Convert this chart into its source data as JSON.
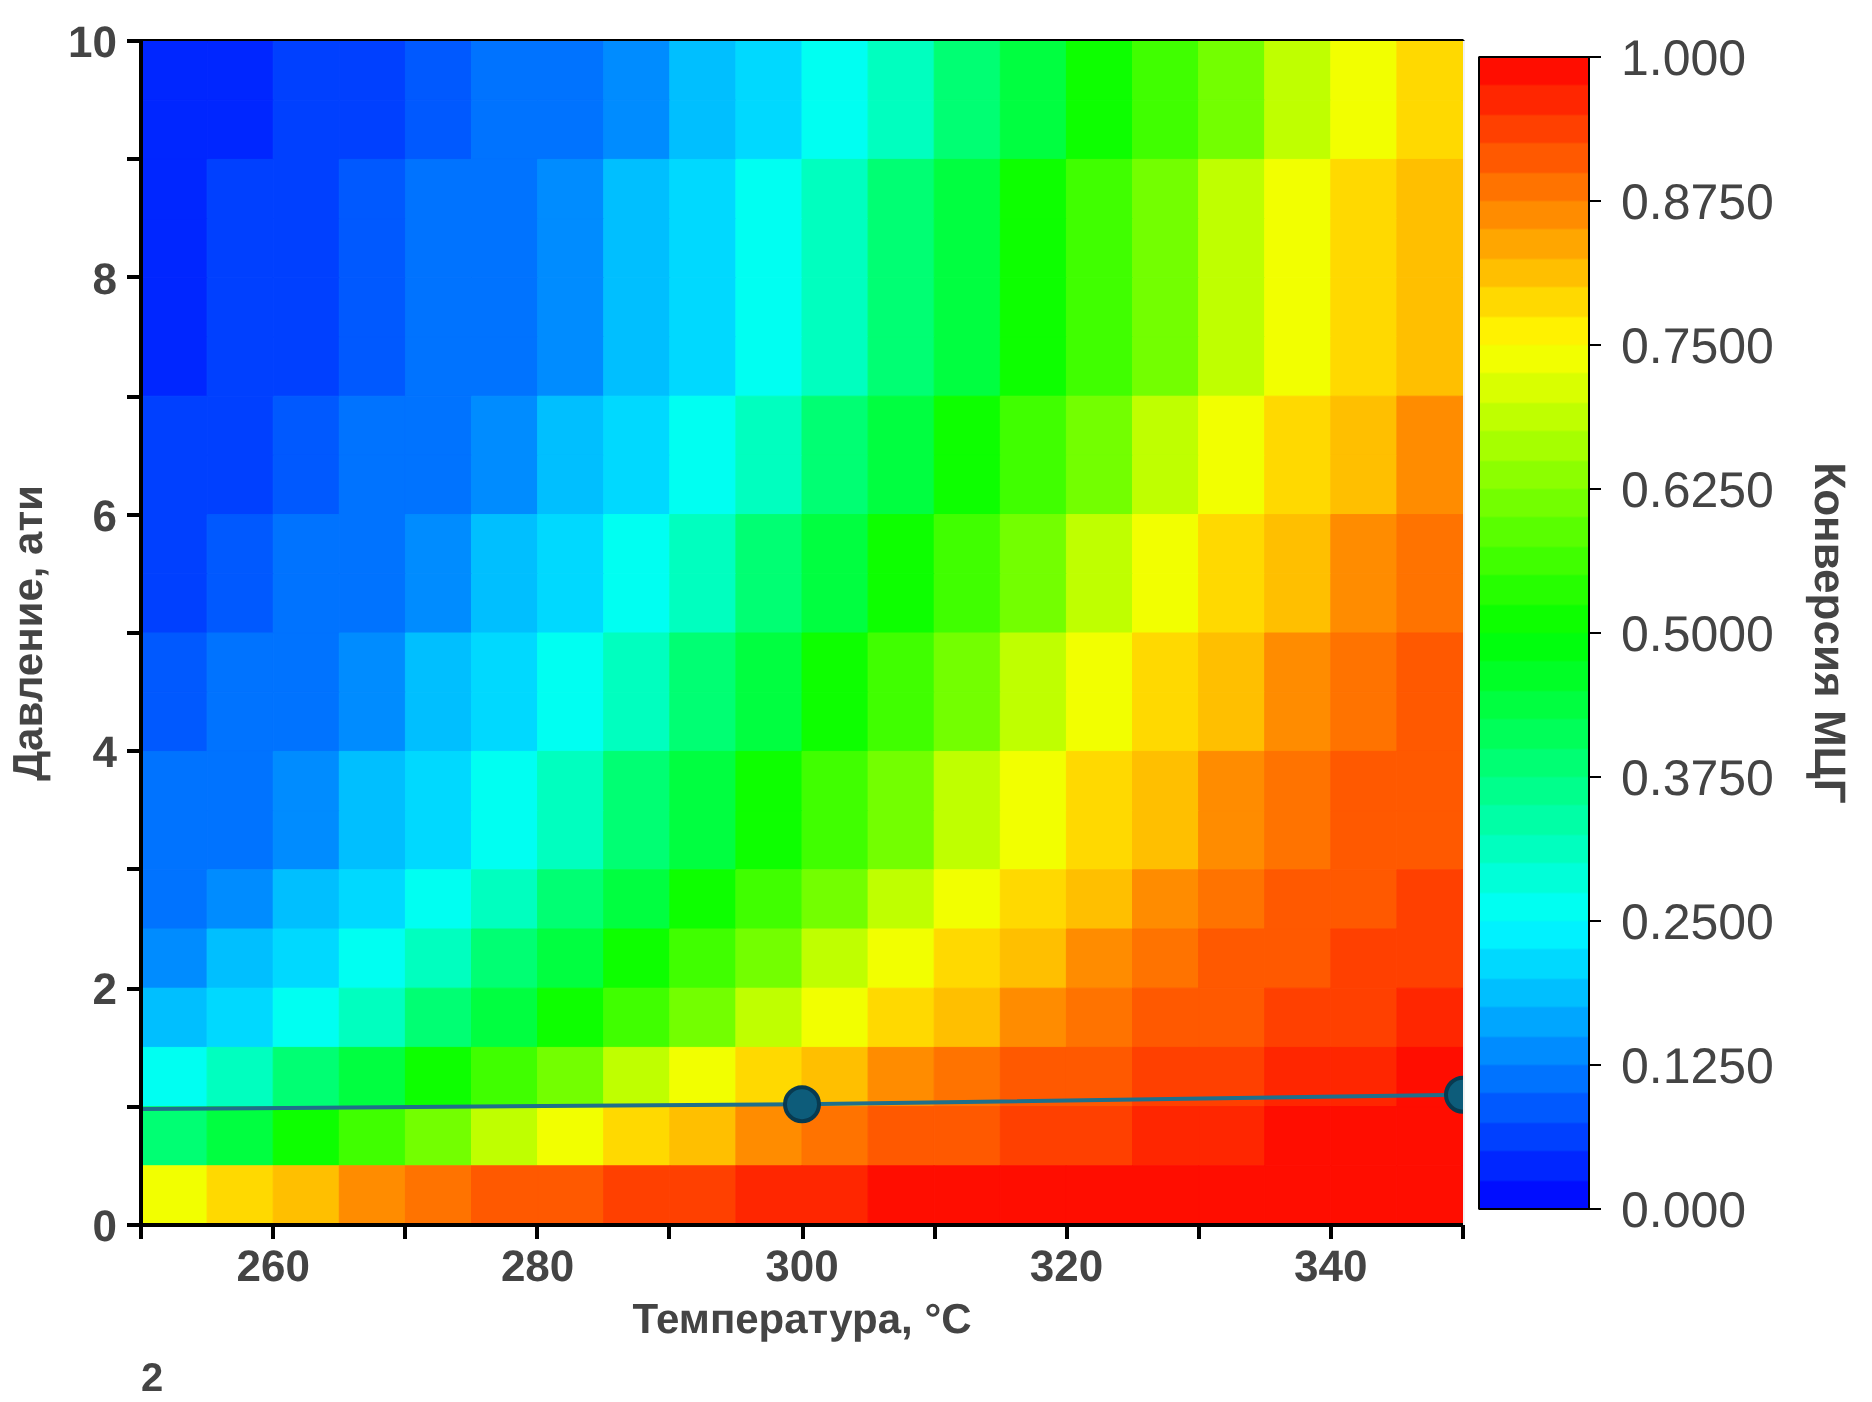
{
  "chart_data": {
    "type": "heatmap",
    "xlabel": "Температура, °C",
    "ylabel": "Давление, ати",
    "clabel": "Конверсия МЦГ",
    "xlim": [
      250,
      350
    ],
    "ylim": [
      0,
      10
    ],
    "xticks": [
      {
        "value": 250,
        "label": null
      },
      260,
      {
        "value": 270,
        "label": null
      },
      280,
      {
        "value": 290,
        "label": null
      },
      300,
      {
        "value": 310,
        "label": null
      },
      320,
      {
        "value": 330,
        "label": null
      },
      340,
      {
        "value": 350,
        "label": null
      }
    ],
    "yticks": [
      0,
      {
        "value": 1,
        "label": null
      },
      2,
      {
        "value": 3,
        "label": null
      },
      4,
      {
        "value": 5,
        "label": null
      },
      6,
      {
        "value": 7,
        "label": null
      },
      8,
      {
        "value": 9,
        "label": null
      },
      10
    ],
    "x": [
      252.5,
      257.5,
      262.5,
      267.5,
      272.5,
      277.5,
      282.5,
      287.5,
      292.5,
      297.5,
      302.5,
      307.5,
      312.5,
      317.5,
      322.5,
      327.5,
      332.5,
      337.5,
      342.5,
      347.5
    ],
    "cells": [
      [
        0.03,
        0.04,
        0.05,
        0.06,
        0.08,
        0.1,
        0.12,
        0.15,
        0.18,
        0.22,
        0.27,
        0.32,
        0.38,
        0.44,
        0.5,
        0.56,
        0.62,
        0.68,
        0.73,
        0.78
      ],
      [
        0.03,
        0.04,
        0.05,
        0.06,
        0.08,
        0.1,
        0.12,
        0.15,
        0.18,
        0.22,
        0.27,
        0.32,
        0.38,
        0.44,
        0.5,
        0.56,
        0.62,
        0.68,
        0.73,
        0.78
      ],
      [
        0.04,
        0.05,
        0.06,
        0.08,
        0.1,
        0.12,
        0.15,
        0.18,
        0.22,
        0.27,
        0.32,
        0.38,
        0.44,
        0.5,
        0.56,
        0.62,
        0.68,
        0.73,
        0.78,
        0.82
      ],
      [
        0.04,
        0.05,
        0.06,
        0.08,
        0.1,
        0.12,
        0.15,
        0.18,
        0.22,
        0.27,
        0.32,
        0.38,
        0.44,
        0.5,
        0.56,
        0.62,
        0.68,
        0.73,
        0.78,
        0.82
      ],
      [
        0.04,
        0.05,
        0.06,
        0.08,
        0.1,
        0.12,
        0.15,
        0.18,
        0.22,
        0.27,
        0.32,
        0.38,
        0.44,
        0.5,
        0.56,
        0.62,
        0.68,
        0.73,
        0.78,
        0.82
      ],
      [
        0.04,
        0.05,
        0.06,
        0.08,
        0.1,
        0.12,
        0.15,
        0.18,
        0.22,
        0.27,
        0.32,
        0.38,
        0.44,
        0.5,
        0.56,
        0.62,
        0.68,
        0.73,
        0.78,
        0.82
      ],
      [
        0.05,
        0.06,
        0.08,
        0.1,
        0.12,
        0.15,
        0.18,
        0.22,
        0.27,
        0.32,
        0.38,
        0.44,
        0.5,
        0.56,
        0.62,
        0.68,
        0.73,
        0.78,
        0.82,
        0.85
      ],
      [
        0.05,
        0.06,
        0.08,
        0.1,
        0.12,
        0.15,
        0.18,
        0.22,
        0.27,
        0.32,
        0.38,
        0.44,
        0.5,
        0.56,
        0.62,
        0.68,
        0.73,
        0.78,
        0.82,
        0.85
      ],
      [
        0.06,
        0.08,
        0.1,
        0.12,
        0.15,
        0.18,
        0.22,
        0.27,
        0.32,
        0.38,
        0.44,
        0.5,
        0.56,
        0.62,
        0.68,
        0.73,
        0.78,
        0.82,
        0.85,
        0.88
      ],
      [
        0.06,
        0.08,
        0.1,
        0.12,
        0.15,
        0.18,
        0.22,
        0.27,
        0.32,
        0.38,
        0.44,
        0.5,
        0.56,
        0.62,
        0.68,
        0.73,
        0.78,
        0.82,
        0.85,
        0.88
      ],
      [
        0.08,
        0.1,
        0.12,
        0.15,
        0.18,
        0.22,
        0.27,
        0.32,
        0.38,
        0.44,
        0.5,
        0.56,
        0.62,
        0.68,
        0.73,
        0.78,
        0.82,
        0.85,
        0.88,
        0.9
      ],
      [
        0.08,
        0.1,
        0.12,
        0.15,
        0.18,
        0.22,
        0.27,
        0.32,
        0.38,
        0.44,
        0.5,
        0.56,
        0.62,
        0.68,
        0.73,
        0.78,
        0.82,
        0.85,
        0.88,
        0.9
      ],
      [
        0.1,
        0.12,
        0.15,
        0.18,
        0.22,
        0.27,
        0.32,
        0.38,
        0.44,
        0.5,
        0.56,
        0.62,
        0.68,
        0.73,
        0.78,
        0.82,
        0.85,
        0.88,
        0.9,
        0.92
      ],
      [
        0.1,
        0.12,
        0.15,
        0.18,
        0.22,
        0.27,
        0.32,
        0.38,
        0.44,
        0.5,
        0.56,
        0.62,
        0.68,
        0.73,
        0.78,
        0.82,
        0.85,
        0.88,
        0.9,
        0.92
      ],
      [
        0.12,
        0.15,
        0.18,
        0.22,
        0.27,
        0.32,
        0.38,
        0.44,
        0.5,
        0.56,
        0.62,
        0.68,
        0.73,
        0.78,
        0.82,
        0.85,
        0.88,
        0.9,
        0.92,
        0.94
      ],
      [
        0.15,
        0.18,
        0.22,
        0.27,
        0.32,
        0.38,
        0.44,
        0.5,
        0.56,
        0.62,
        0.68,
        0.73,
        0.78,
        0.82,
        0.85,
        0.88,
        0.9,
        0.92,
        0.94,
        0.95
      ],
      [
        0.18,
        0.22,
        0.27,
        0.32,
        0.38,
        0.44,
        0.5,
        0.56,
        0.62,
        0.68,
        0.73,
        0.78,
        0.82,
        0.85,
        0.88,
        0.9,
        0.92,
        0.94,
        0.95,
        0.96
      ],
      [
        0.27,
        0.32,
        0.38,
        0.44,
        0.5,
        0.56,
        0.62,
        0.68,
        0.73,
        0.78,
        0.82,
        0.85,
        0.88,
        0.9,
        0.92,
        0.94,
        0.95,
        0.96,
        0.97,
        0.98
      ],
      [
        0.38,
        0.44,
        0.5,
        0.56,
        0.62,
        0.68,
        0.73,
        0.78,
        0.82,
        0.85,
        0.88,
        0.9,
        0.92,
        0.94,
        0.95,
        0.96,
        0.97,
        0.98,
        0.98,
        0.99
      ],
      [
        0.73,
        0.78,
        0.82,
        0.85,
        0.88,
        0.9,
        0.92,
        0.94,
        0.95,
        0.96,
        0.97,
        0.98,
        0.98,
        0.99,
        0.99,
        0.99,
        0.99,
        0.99,
        0.99,
        0.99
      ]
    ],
    "clim": [
      0,
      1
    ],
    "cticks": [
      {
        "value": 0,
        "label": "0.000"
      },
      {
        "value": 0.125,
        "label": "0.1250"
      },
      {
        "value": 0.25,
        "label": "0.2500"
      },
      {
        "value": 0.375,
        "label": "0.3750"
      },
      {
        "value": 0.5,
        "label": "0.5000"
      },
      {
        "value": 0.625,
        "label": "0.6250"
      },
      {
        "value": 0.75,
        "label": "0.7500"
      },
      {
        "value": 0.875,
        "label": "0.8750"
      },
      {
        "value": 1,
        "label": "1.000"
      }
    ],
    "series": [
      {
        "type": "line",
        "color": "#1f6f8b",
        "x": [
          250,
          300,
          350
        ],
        "values": [
          0.98,
          1.02,
          1.1
        ]
      },
      {
        "type": "scatter",
        "marker": "circle",
        "color": "#0d5c7a",
        "x": [
          300,
          350
        ],
        "values": [
          1.02,
          1.1
        ]
      }
    ],
    "annotations": [
      "2"
    ]
  }
}
